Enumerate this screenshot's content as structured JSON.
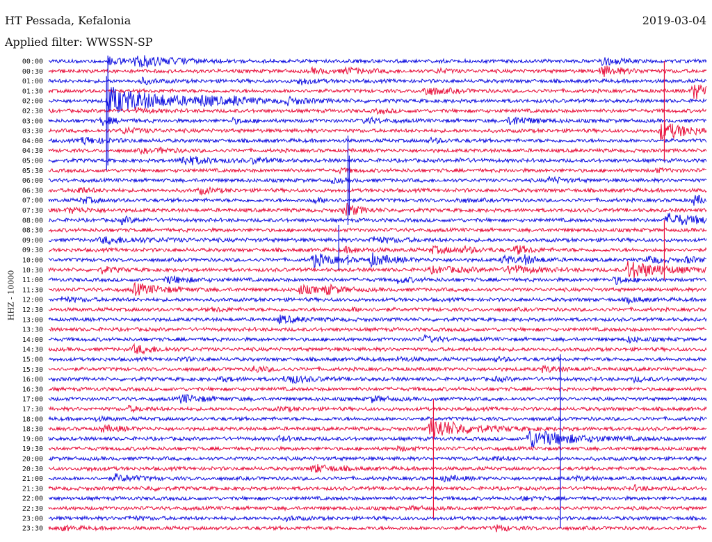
{
  "header": {
    "station": "HT Pessada, Kefalonia",
    "date": "2019-03-04",
    "filter": "Applied filter: WWSSN-SP"
  },
  "chart_data": {
    "type": "helicorder",
    "ylabel": "HHZ - 10000",
    "row_labels": [
      "00:00",
      "00:30",
      "01:00",
      "01:30",
      "02:00",
      "02:30",
      "03:00",
      "03:30",
      "04:00",
      "04:30",
      "05:00",
      "05:30",
      "06:00",
      "06:30",
      "07:00",
      "07:30",
      "08:00",
      "08:30",
      "09:00",
      "09:30",
      "10:00",
      "10:30",
      "11:00",
      "11:30",
      "12:00",
      "12:30",
      "13:00",
      "13:30",
      "14:00",
      "14:30",
      "15:00",
      "15:30",
      "16:00",
      "16:30",
      "17:00",
      "17:30",
      "18:00",
      "18:30",
      "19:00",
      "19:30",
      "20:00",
      "20:30",
      "21:00",
      "21:30",
      "22:00",
      "22:30",
      "23:00",
      "23:30"
    ],
    "colors": {
      "even": "#1010e0",
      "odd": "#e8103c"
    },
    "events": [
      {
        "row": 0,
        "t": 0.09,
        "a": 1.0,
        "d": 0.03
      },
      {
        "row": 0,
        "t": 0.13,
        "a": 1.6,
        "d": 0.05
      },
      {
        "row": 0,
        "t": 0.84,
        "a": 1.4,
        "d": 0.02
      },
      {
        "row": 1,
        "t": 0.4,
        "a": 0.6,
        "d": 0.03
      },
      {
        "row": 1,
        "t": 0.45,
        "a": 0.8,
        "d": 0.03
      },
      {
        "row": 1,
        "t": 0.59,
        "a": 0.6,
        "d": 0.02
      },
      {
        "row": 1,
        "t": 0.84,
        "a": 1.4,
        "d": 0.03
      },
      {
        "row": 2,
        "t": 0.38,
        "a": 1.0,
        "d": 0.02
      },
      {
        "row": 2,
        "t": 0.14,
        "a": 0.8,
        "d": 0.02
      },
      {
        "row": 3,
        "t": 0.57,
        "a": 1.2,
        "d": 0.03
      },
      {
        "row": 3,
        "t": 0.98,
        "a": 2.4,
        "d": 0.03
      },
      {
        "row": 4,
        "t": 0.09,
        "a": 4.0,
        "d": 0.08
      },
      {
        "row": 4,
        "t": 0.23,
        "a": 1.0,
        "d": 0.03
      },
      {
        "row": 4,
        "t": 0.28,
        "a": 0.8,
        "d": 0.02
      },
      {
        "row": 4,
        "t": 0.36,
        "a": 0.9,
        "d": 0.03
      },
      {
        "row": 5,
        "t": 0.13,
        "a": 0.7,
        "d": 0.02
      },
      {
        "row": 5,
        "t": 0.5,
        "a": 0.5,
        "d": 0.02
      },
      {
        "row": 6,
        "t": 0.08,
        "a": 1.2,
        "d": 0.02
      },
      {
        "row": 6,
        "t": 0.28,
        "a": 0.6,
        "d": 0.02
      },
      {
        "row": 6,
        "t": 0.48,
        "a": 0.9,
        "d": 0.02
      },
      {
        "row": 6,
        "t": 0.7,
        "a": 1.3,
        "d": 0.03
      },
      {
        "row": 7,
        "t": 0.11,
        "a": 0.8,
        "d": 0.03
      },
      {
        "row": 7,
        "t": 0.93,
        "a": 2.6,
        "d": 0.04
      },
      {
        "row": 8,
        "t": 0.05,
        "a": 1.0,
        "d": 0.03
      },
      {
        "row": 8,
        "t": 0.58,
        "a": 0.6,
        "d": 0.02
      },
      {
        "row": 9,
        "t": 0.14,
        "a": 0.5,
        "d": 0.02
      },
      {
        "row": 9,
        "t": 0.17,
        "a": 0.5,
        "d": 0.02
      },
      {
        "row": 10,
        "t": 0.2,
        "a": 1.4,
        "d": 0.04
      },
      {
        "row": 10,
        "t": 0.31,
        "a": 0.7,
        "d": 0.02
      },
      {
        "row": 10,
        "t": 0.62,
        "a": 0.4,
        "d": 0.02
      },
      {
        "row": 11,
        "t": 0.44,
        "a": 0.5,
        "d": 0.02
      },
      {
        "row": 11,
        "t": 0.92,
        "a": 0.5,
        "d": 0.02
      },
      {
        "row": 12,
        "t": 0.43,
        "a": 0.5,
        "d": 0.02
      },
      {
        "row": 12,
        "t": 0.76,
        "a": 0.9,
        "d": 0.02
      },
      {
        "row": 13,
        "t": 0.04,
        "a": 1.0,
        "d": 0.02
      },
      {
        "row": 13,
        "t": 0.23,
        "a": 0.9,
        "d": 0.02
      },
      {
        "row": 14,
        "t": 0.05,
        "a": 0.9,
        "d": 0.02
      },
      {
        "row": 14,
        "t": 0.4,
        "a": 0.8,
        "d": 0.02
      },
      {
        "row": 14,
        "t": 0.62,
        "a": 0.5,
        "d": 0.02
      },
      {
        "row": 14,
        "t": 0.98,
        "a": 1.3,
        "d": 0.02
      },
      {
        "row": 15,
        "t": 0.03,
        "a": 0.8,
        "d": 0.03
      },
      {
        "row": 15,
        "t": 0.45,
        "a": 2.0,
        "d": 0.02
      },
      {
        "row": 16,
        "t": 0.11,
        "a": 0.9,
        "d": 0.02
      },
      {
        "row": 16,
        "t": 0.94,
        "a": 1.8,
        "d": 0.05
      },
      {
        "row": 18,
        "t": 0.08,
        "a": 0.8,
        "d": 0.08
      },
      {
        "row": 18,
        "t": 0.49,
        "a": 0.8,
        "d": 0.04
      },
      {
        "row": 19,
        "t": 0.58,
        "a": 0.9,
        "d": 0.04
      },
      {
        "row": 19,
        "t": 0.63,
        "a": 0.6,
        "d": 0.02
      },
      {
        "row": 19,
        "t": 0.71,
        "a": 1.2,
        "d": 0.02
      },
      {
        "row": 19,
        "t": 0.45,
        "a": 0.6,
        "d": 0.03
      },
      {
        "row": 20,
        "t": 0.4,
        "a": 2.0,
        "d": 0.03
      },
      {
        "row": 20,
        "t": 0.49,
        "a": 1.6,
        "d": 0.03
      },
      {
        "row": 20,
        "t": 0.69,
        "a": 1.2,
        "d": 0.02
      },
      {
        "row": 20,
        "t": 0.72,
        "a": 1.2,
        "d": 0.02
      },
      {
        "row": 20,
        "t": 0.91,
        "a": 1.2,
        "d": 0.02
      },
      {
        "row": 20,
        "t": 0.97,
        "a": 0.8,
        "d": 0.02
      },
      {
        "row": 21,
        "t": 0.08,
        "a": 0.8,
        "d": 0.02
      },
      {
        "row": 21,
        "t": 0.58,
        "a": 0.7,
        "d": 0.08
      },
      {
        "row": 21,
        "t": 0.7,
        "a": 1.2,
        "d": 0.03
      },
      {
        "row": 21,
        "t": 0.88,
        "a": 2.6,
        "d": 0.05
      },
      {
        "row": 22,
        "t": 0.18,
        "a": 1.0,
        "d": 0.03
      },
      {
        "row": 22,
        "t": 0.53,
        "a": 0.8,
        "d": 0.02
      },
      {
        "row": 22,
        "t": 0.86,
        "a": 1.0,
        "d": 0.02
      },
      {
        "row": 23,
        "t": 0.13,
        "a": 1.6,
        "d": 0.04
      },
      {
        "row": 23,
        "t": 0.38,
        "a": 1.2,
        "d": 0.03
      },
      {
        "row": 23,
        "t": 0.42,
        "a": 1.2,
        "d": 0.02
      },
      {
        "row": 24,
        "t": 0.02,
        "a": 0.6,
        "d": 0.03
      },
      {
        "row": 24,
        "t": 0.88,
        "a": 0.8,
        "d": 0.02
      },
      {
        "row": 25,
        "t": 0.25,
        "a": 0.5,
        "d": 0.02
      },
      {
        "row": 25,
        "t": 0.46,
        "a": 0.4,
        "d": 0.02
      },
      {
        "row": 26,
        "t": 0.35,
        "a": 1.0,
        "d": 0.03
      },
      {
        "row": 28,
        "t": 0.57,
        "a": 0.9,
        "d": 0.02
      },
      {
        "row": 28,
        "t": 0.88,
        "a": 0.7,
        "d": 0.02
      },
      {
        "row": 29,
        "t": 0.13,
        "a": 1.2,
        "d": 0.03
      },
      {
        "row": 30,
        "t": 0.2,
        "a": 0.4,
        "d": 0.02
      },
      {
        "row": 30,
        "t": 0.53,
        "a": 0.5,
        "d": 0.02
      },
      {
        "row": 30,
        "t": 0.68,
        "a": 0.5,
        "d": 0.02
      },
      {
        "row": 31,
        "t": 0.31,
        "a": 0.9,
        "d": 0.02
      },
      {
        "row": 31,
        "t": 0.75,
        "a": 0.8,
        "d": 0.03
      },
      {
        "row": 32,
        "t": 0.26,
        "a": 0.6,
        "d": 0.02
      },
      {
        "row": 32,
        "t": 0.36,
        "a": 1.3,
        "d": 0.03
      },
      {
        "row": 32,
        "t": 0.68,
        "a": 0.5,
        "d": 0.02
      },
      {
        "row": 32,
        "t": 0.89,
        "a": 0.6,
        "d": 0.02
      },
      {
        "row": 34,
        "t": 0.2,
        "a": 1.2,
        "d": 0.03
      },
      {
        "row": 34,
        "t": 0.49,
        "a": 0.8,
        "d": 0.02
      },
      {
        "row": 35,
        "t": 0.12,
        "a": 0.7,
        "d": 0.02
      },
      {
        "row": 35,
        "t": 0.35,
        "a": 0.5,
        "d": 0.02
      },
      {
        "row": 36,
        "t": 0.07,
        "a": 0.4,
        "d": 0.02
      },
      {
        "row": 37,
        "t": 0.08,
        "a": 0.8,
        "d": 0.03
      },
      {
        "row": 37,
        "t": 0.58,
        "a": 3.0,
        "d": 0.05
      },
      {
        "row": 38,
        "t": 0.35,
        "a": 0.6,
        "d": 0.02
      },
      {
        "row": 38,
        "t": 0.73,
        "a": 2.6,
        "d": 0.06
      },
      {
        "row": 39,
        "t": 0.53,
        "a": 0.4,
        "d": 0.03
      },
      {
        "row": 40,
        "t": 0.67,
        "a": 0.6,
        "d": 0.02
      },
      {
        "row": 41,
        "t": 0.06,
        "a": 0.4,
        "d": 0.02
      },
      {
        "row": 41,
        "t": 0.4,
        "a": 1.2,
        "d": 0.03
      },
      {
        "row": 42,
        "t": 0.1,
        "a": 1.0,
        "d": 0.03
      },
      {
        "row": 42,
        "t": 0.6,
        "a": 0.8,
        "d": 0.02
      },
      {
        "row": 42,
        "t": 0.8,
        "a": 0.5,
        "d": 0.02
      },
      {
        "row": 43,
        "t": 0.15,
        "a": 0.4,
        "d": 0.02
      },
      {
        "row": 43,
        "t": 0.89,
        "a": 0.6,
        "d": 0.02
      },
      {
        "row": 44,
        "t": 0.72,
        "a": 0.4,
        "d": 0.02
      },
      {
        "row": 45,
        "t": 0.55,
        "a": 0.4,
        "d": 0.02
      },
      {
        "row": 46,
        "t": 0.12,
        "a": 0.5,
        "d": 0.02
      },
      {
        "row": 46,
        "t": 0.36,
        "a": 0.5,
        "d": 0.02
      },
      {
        "row": 47,
        "t": 0.02,
        "a": 0.5,
        "d": 0.02
      },
      {
        "row": 47,
        "t": 0.68,
        "a": 0.8,
        "d": 0.02
      }
    ],
    "spikes": [
      {
        "row": 4,
        "t": 0.09,
        "up": 6.5,
        "down": 6.5
      },
      {
        "row": 2,
        "t": 0.088,
        "up": 0.5,
        "down": 9.0
      },
      {
        "row": 20,
        "t": 0.455,
        "up": 0.5,
        "down": 0.5
      },
      {
        "row": 3,
        "t": 0.936,
        "up": 3.0,
        "down": 7.0
      },
      {
        "row": 20,
        "t": 0.441,
        "up": 3.5,
        "down": 1.0
      },
      {
        "row": 19,
        "t": 0.936,
        "up": 3.0,
        "down": 3.0
      },
      {
        "row": 10,
        "t": 0.457,
        "up": 0.5,
        "down": 5.5
      },
      {
        "row": 37,
        "t": 0.585,
        "up": 3.0,
        "down": 9.0
      },
      {
        "row": 38,
        "t": 0.778,
        "up": 8.5,
        "down": 9.0
      },
      {
        "row": 8,
        "t": 0.455,
        "up": 0.5,
        "down": 8.5
      }
    ]
  }
}
